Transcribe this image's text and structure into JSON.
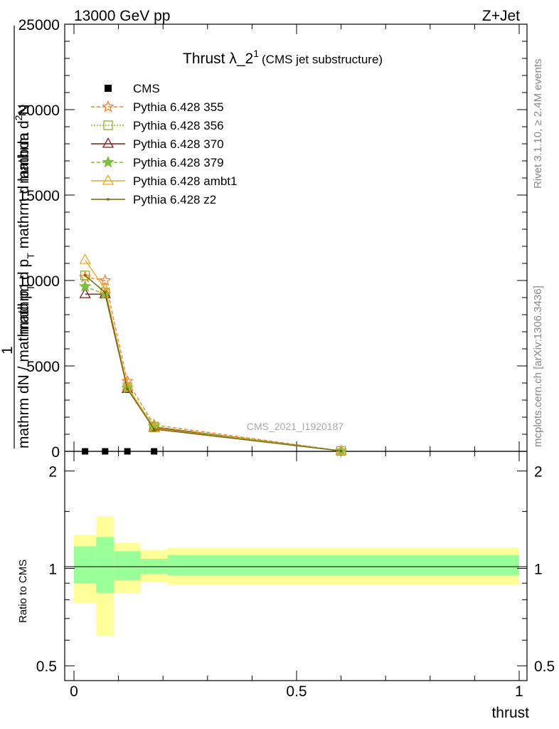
{
  "header": {
    "left": "13000 GeV pp",
    "right": "Z+Jet"
  },
  "side_labels": {
    "rivet": "Rivet 3.1.10, ≥ 2.4M events",
    "mcplots": "mcplots.cern.ch [arXiv:1306.3436]"
  },
  "watermark": "CMS_2021_I1920187",
  "title": {
    "main": "Thrust λ_2",
    "sup": "1",
    "sub": "(CMS jet substructure)"
  },
  "ylabel_main": {
    "one": "1",
    "numer": "mathrm d",
    "numer_sup": "2",
    "numer_rest": "N",
    "denom_mid": "mathrm d p",
    "denom_mid_sub": "T",
    "denom_rest": " mathrm d lambda",
    "frac_left": "mathrm dN / mathrmd p",
    "frac_left_sub": "T"
  },
  "ylabel_ratio": "Ratio to CMS",
  "xlabel": "thrust",
  "legend": [
    {
      "label": "CMS",
      "color": "#000000",
      "marker": "square",
      "dash": "none"
    },
    {
      "label": "Pythia 6.428 355",
      "color": "#ff7f2a",
      "marker": "star-open",
      "dash": "5,3"
    },
    {
      "label": "Pythia 6.428 356",
      "color": "#8db32a",
      "marker": "square-open",
      "dash": "2,2"
    },
    {
      "label": "Pythia 6.428 370",
      "color": "#8b1a1a",
      "marker": "triangle-open",
      "dash": "none"
    },
    {
      "label": "Pythia 6.428 379",
      "color": "#7fbf3f",
      "marker": "star",
      "dash": "5,3"
    },
    {
      "label": "Pythia 6.428 ambt1",
      "color": "#f0a820",
      "marker": "triangle-open",
      "dash": "none"
    },
    {
      "label": "Pythia 6.428 z2",
      "color": "#6b6b10",
      "marker": "dot",
      "dash": "none"
    }
  ],
  "main_ticks": {
    "y_labels": [
      "0",
      "5000",
      "10000",
      "15000",
      "20000",
      "25000"
    ],
    "y_values": [
      0,
      5000,
      10000,
      15000,
      20000,
      25000
    ]
  },
  "ratio_ticks": {
    "y_labels": [
      "0.5",
      "1",
      "2"
    ],
    "y_values": [
      0.5,
      1,
      2
    ],
    "x_labels": [
      "0",
      "0.5",
      "1"
    ],
    "x_values": [
      0,
      0.5,
      1
    ]
  },
  "chart_data": {
    "type": "line",
    "xlabel": "thrust",
    "ylabel": "",
    "xlim": [
      0,
      1
    ],
    "ylim": [
      0,
      25000
    ],
    "ratio_ylim": [
      0.45,
      2.3
    ],
    "log_y_ratio": true,
    "data": {
      "name": "CMS",
      "x": [
        0.025,
        0.07,
        0.12,
        0.18
      ],
      "y": [
        0,
        0,
        0,
        0
      ]
    },
    "series": [
      {
        "name": "Pythia 6.428 355",
        "x": [
          0.025,
          0.07,
          0.12,
          0.18,
          0.6
        ],
        "y": [
          10200,
          10000,
          4100,
          1550,
          30
        ]
      },
      {
        "name": "Pythia 6.428 356",
        "x": [
          0.025,
          0.07,
          0.12,
          0.18,
          0.6
        ],
        "y": [
          10300,
          9300,
          3750,
          1450,
          25
        ]
      },
      {
        "name": "Pythia 6.428 370",
        "x": [
          0.025,
          0.07,
          0.12,
          0.18,
          0.6
        ],
        "y": [
          9200,
          9200,
          3650,
          1400,
          25
        ]
      },
      {
        "name": "Pythia 6.428 379",
        "x": [
          0.025,
          0.07,
          0.12,
          0.18,
          0.6
        ],
        "y": [
          9650,
          9200,
          3700,
          1450,
          25
        ]
      },
      {
        "name": "Pythia 6.428 ambt1",
        "x": [
          0.025,
          0.07,
          0.12,
          0.18,
          0.6
        ],
        "y": [
          11200,
          9500,
          3800,
          1350,
          25
        ]
      },
      {
        "name": "Pythia 6.428 z2",
        "x": [
          0.025,
          0.07,
          0.12,
          0.18,
          0.6
        ],
        "y": [
          10300,
          9300,
          3650,
          1300,
          25
        ]
      }
    ],
    "ratio_bands": [
      {
        "x0": 0.0,
        "x1": 0.05,
        "yellow": [
          0.78,
          1.27
        ],
        "green": [
          0.9,
          1.17
        ]
      },
      {
        "x0": 0.05,
        "x1": 0.09,
        "yellow": [
          0.62,
          1.45
        ],
        "green": [
          0.84,
          1.25
        ]
      },
      {
        "x0": 0.09,
        "x1": 0.15,
        "yellow": [
          0.84,
          1.2
        ],
        "green": [
          0.92,
          1.13
        ]
      },
      {
        "x0": 0.15,
        "x1": 0.21,
        "yellow": [
          0.91,
          1.14
        ],
        "green": [
          0.96,
          1.07
        ]
      },
      {
        "x0": 0.21,
        "x1": 1.0,
        "yellow": [
          0.89,
          1.16
        ],
        "green": [
          0.95,
          1.1
        ]
      }
    ]
  }
}
